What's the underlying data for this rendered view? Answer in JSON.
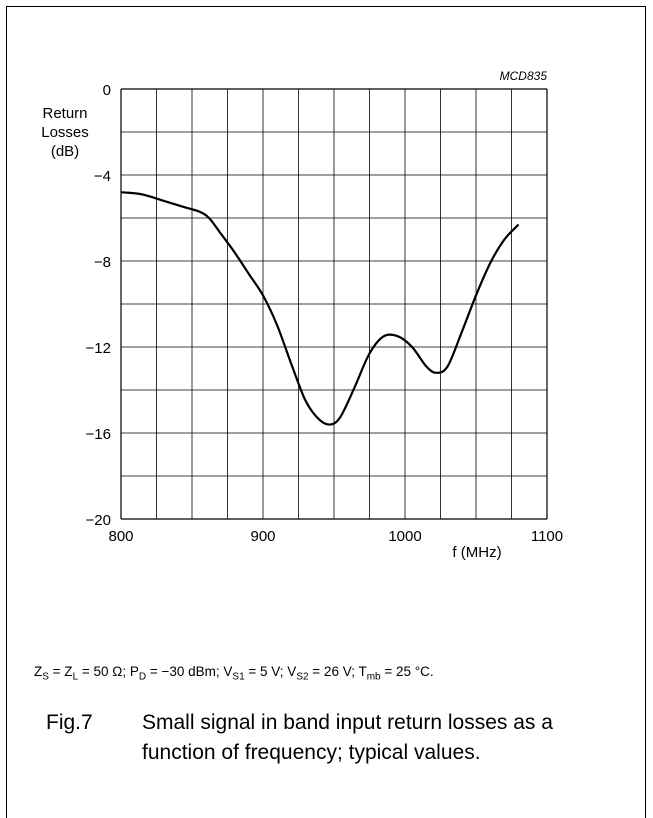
{
  "chart_data": {
    "type": "line",
    "code": "MCD835",
    "ylabel": [
      "Return",
      "Losses",
      "(dB)"
    ],
    "xlabel": "f (MHz)",
    "xlim": [
      800,
      1100
    ],
    "ylim": [
      -20,
      0
    ],
    "x_ticks": [
      "800",
      "900",
      "1000",
      "1100"
    ],
    "y_ticks": [
      "0",
      "−4",
      "−8",
      "−12",
      "−16",
      "−20"
    ],
    "grid": true,
    "series": [
      {
        "x": [
          800,
          815,
          830,
          845,
          855,
          862,
          870,
          880,
          890,
          900,
          910,
          920,
          930,
          940,
          948,
          955,
          965,
          975,
          985,
          995,
          1005,
          1015,
          1022,
          1030,
          1040,
          1050,
          1060,
          1070,
          1080
        ],
        "y": [
          -4.8,
          -4.9,
          -5.2,
          -5.5,
          -5.7,
          -6.0,
          -6.7,
          -7.6,
          -8.6,
          -9.6,
          -11.0,
          -12.8,
          -14.5,
          -15.4,
          -15.6,
          -15.2,
          -13.8,
          -12.3,
          -11.5,
          -11.5,
          -12.0,
          -12.9,
          -13.2,
          -12.9,
          -11.3,
          -9.6,
          -8.1,
          -7.0,
          -6.3
        ]
      }
    ]
  },
  "conditions": {
    "p1": "Z",
    "s1": "S",
    "p2": " = Z",
    "s2": "L",
    "p3": " = 50 Ω; P",
    "s3": "D",
    "p4": " = −30 dBm; V",
    "s4": "S1",
    "p5": " = 5 V; V",
    "s5": "S2",
    "p6": " = 26 V; T",
    "s6": "mb",
    "p7": " = 25 °C."
  },
  "caption": {
    "fig": "Fig.7",
    "text": "Small signal in band input return losses as a function of frequency; typical values."
  }
}
